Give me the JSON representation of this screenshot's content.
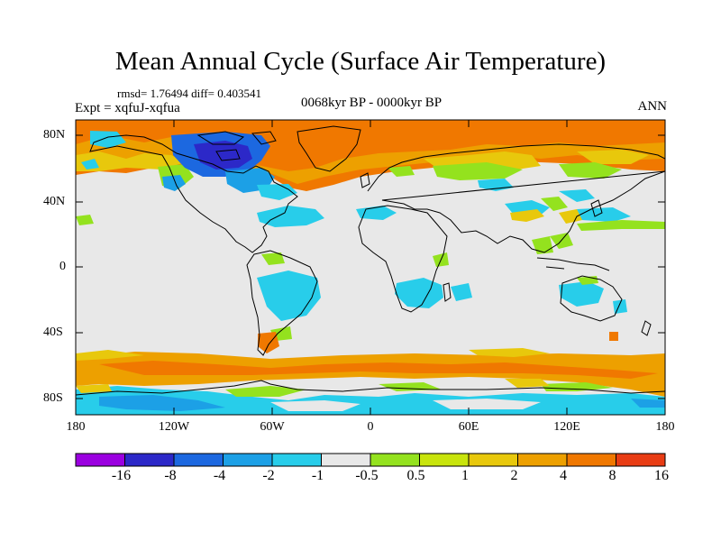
{
  "title": "Mean Annual Cycle (Surface Air Temperature)",
  "stats": "rmsd= 1.76494 diff= 0.403541",
  "experiment": "Expt = xqfuJ-xqfua",
  "period": "0068kyr BP - 0000kyr BP",
  "season": "ANN",
  "y_ticks": [
    "80N",
    "40N",
    "0",
    "40S",
    "80S"
  ],
  "x_ticks": [
    "180",
    "120W",
    "60W",
    "0",
    "60E",
    "120E",
    "180"
  ],
  "colorbar": {
    "colors": [
      "#9b00e0",
      "#2c28c8",
      "#1c68e0",
      "#1ca0e6",
      "#28cdea",
      "#e8e8e8",
      "#94e21e",
      "#c8e40c",
      "#e8c80c",
      "#eda000",
      "#f07800",
      "#e83c14"
    ],
    "labels": [
      "-16",
      "-8",
      "-4",
      "-2",
      "-1",
      "-0.5",
      "0.5",
      "1",
      "2",
      "4",
      "8",
      "16"
    ]
  },
  "palette": {
    "neutral": "#e8e8e8",
    "warm_orange": "#f07800",
    "warm_light": "#eda000",
    "yellow": "#e8c80c",
    "green": "#94e21e",
    "cyan": "#28cdea",
    "light_blue": "#1ca0e6",
    "blue": "#1c68e0",
    "dark_blue": "#2c28c8"
  }
}
